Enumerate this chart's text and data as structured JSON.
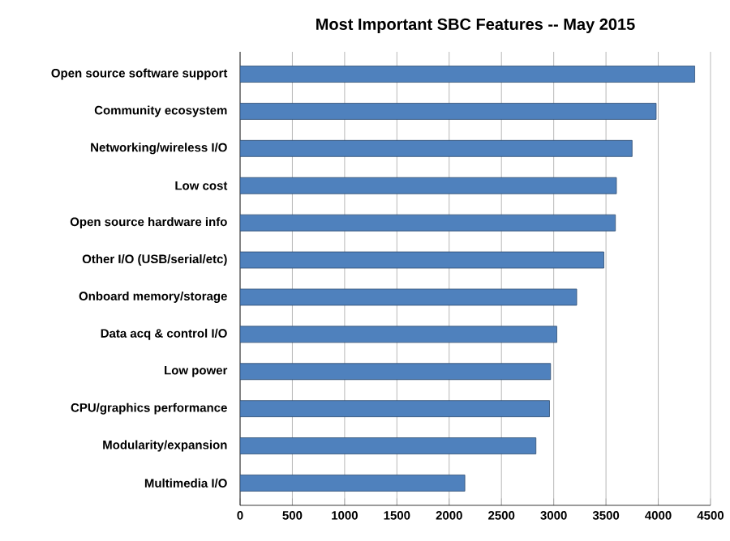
{
  "chart_data": {
    "type": "bar",
    "orientation": "horizontal",
    "title": "Most Important SBC Features -- May 2015",
    "categories": [
      "Open source software support",
      "Community ecosystem",
      "Networking/wireless I/O",
      "Low cost",
      "Open source hardware info",
      "Other I/O (USB/serial/etc)",
      "Onboard memory/storage",
      "Data acq & control I/O",
      "Low power",
      "CPU/graphics performance",
      "Modularity/expansion",
      "Multimedia I/O"
    ],
    "values": [
      4350,
      3980,
      3750,
      3600,
      3590,
      3480,
      3220,
      3030,
      2970,
      2960,
      2830,
      2150
    ],
    "color": "#4f81bd",
    "xlim": [
      0,
      4500
    ],
    "xticks": [
      0,
      500,
      1000,
      1500,
      2000,
      2500,
      3000,
      3500,
      4000,
      4500
    ],
    "grid": "x"
  }
}
